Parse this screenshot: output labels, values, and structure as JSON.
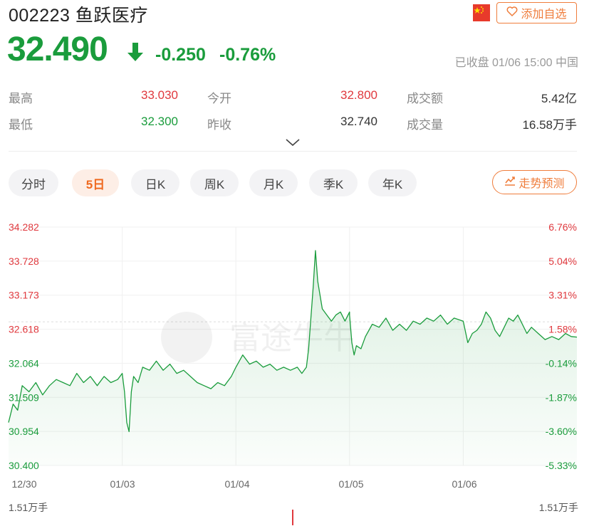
{
  "header": {
    "title": "002223 鱼跃医疗",
    "watchlist_label": "添加自选"
  },
  "quote": {
    "price": "32.490",
    "change": "-0.250",
    "change_pct": "-0.76%",
    "status": "已收盘 01/06 15:00 中国"
  },
  "stats": [
    {
      "label": "最高",
      "value": "33.030",
      "color": "red"
    },
    {
      "label": "今开",
      "value": "32.800",
      "color": "red"
    },
    {
      "label": "成交额",
      "value": "5.42亿",
      "color": "dark"
    },
    {
      "label": "最低",
      "value": "32.300",
      "color": "green"
    },
    {
      "label": "昨收",
      "value": "32.740",
      "color": "dark"
    },
    {
      "label": "成交量",
      "value": "16.58万手",
      "color": "dark"
    }
  ],
  "tabs": [
    {
      "label": "分时",
      "active": false
    },
    {
      "label": "5日",
      "active": true
    },
    {
      "label": "日K",
      "active": false
    },
    {
      "label": "周K",
      "active": false
    },
    {
      "label": "月K",
      "active": false
    },
    {
      "label": "季K",
      "active": false
    },
    {
      "label": "年K",
      "active": false
    }
  ],
  "trend_label": "走势预测",
  "watermark": "富途牛牛",
  "volume": {
    "left_label": "1.51万手",
    "right_label": "1.51万手"
  },
  "colors": {
    "up": "#e0393e",
    "down": "#1a9c3c",
    "accent": "#ef7d3c",
    "line": "#1a9c3c"
  },
  "chart_data": {
    "type": "line",
    "y_ticks": [
      "34.282",
      "33.728",
      "33.173",
      "32.618",
      "32.064",
      "31.509",
      "30.954",
      "30.400"
    ],
    "pct_ticks": [
      "6.76%",
      "5.04%",
      "3.31%",
      "1.58%",
      "-0.14%",
      "-1.87%",
      "-3.60%",
      "-5.33%"
    ],
    "x_ticks": [
      "12/30",
      "01/03",
      "01/04",
      "01/05",
      "01/06"
    ],
    "ylim": [
      30.4,
      34.282
    ],
    "prev_close": 32.74,
    "days": [
      {
        "label": "12/30",
        "points": [
          [
            0.0,
            31.1
          ],
          [
            0.04,
            31.4
          ],
          [
            0.08,
            31.3
          ],
          [
            0.12,
            31.7
          ],
          [
            0.18,
            31.6
          ],
          [
            0.24,
            31.75
          ],
          [
            0.3,
            31.55
          ],
          [
            0.36,
            31.7
          ],
          [
            0.42,
            31.8
          ],
          [
            0.48,
            31.75
          ],
          [
            0.54,
            31.7
          ],
          [
            0.6,
            31.9
          ],
          [
            0.66,
            31.75
          ],
          [
            0.72,
            31.85
          ],
          [
            0.78,
            31.7
          ],
          [
            0.84,
            31.85
          ],
          [
            0.9,
            31.75
          ],
          [
            0.96,
            31.8
          ],
          [
            1.0,
            31.9
          ]
        ]
      },
      {
        "label": "01/03",
        "points": [
          [
            0.0,
            31.9
          ],
          [
            0.02,
            31.6
          ],
          [
            0.04,
            31.1
          ],
          [
            0.06,
            30.95
          ],
          [
            0.08,
            31.6
          ],
          [
            0.1,
            31.85
          ],
          [
            0.14,
            31.75
          ],
          [
            0.18,
            32.0
          ],
          [
            0.24,
            31.95
          ],
          [
            0.3,
            32.1
          ],
          [
            0.36,
            31.95
          ],
          [
            0.42,
            32.05
          ],
          [
            0.48,
            31.9
          ],
          [
            0.54,
            31.95
          ],
          [
            0.6,
            31.85
          ],
          [
            0.66,
            31.75
          ],
          [
            0.72,
            31.7
          ],
          [
            0.78,
            31.65
          ],
          [
            0.84,
            31.75
          ],
          [
            0.9,
            31.7
          ],
          [
            0.96,
            31.85
          ],
          [
            1.0,
            32.0
          ]
        ]
      },
      {
        "label": "01/04",
        "points": [
          [
            0.0,
            32.0
          ],
          [
            0.06,
            32.2
          ],
          [
            0.12,
            32.05
          ],
          [
            0.18,
            32.1
          ],
          [
            0.24,
            32.0
          ],
          [
            0.3,
            32.05
          ],
          [
            0.36,
            31.95
          ],
          [
            0.42,
            32.0
          ],
          [
            0.48,
            31.95
          ],
          [
            0.54,
            32.0
          ],
          [
            0.58,
            31.9
          ],
          [
            0.62,
            32.0
          ],
          [
            0.64,
            32.3
          ],
          [
            0.66,
            32.8
          ],
          [
            0.68,
            33.3
          ],
          [
            0.7,
            33.9
          ],
          [
            0.72,
            33.4
          ],
          [
            0.76,
            32.95
          ],
          [
            0.8,
            32.85
          ],
          [
            0.84,
            32.75
          ],
          [
            0.88,
            32.85
          ],
          [
            0.92,
            32.9
          ],
          [
            0.96,
            32.75
          ],
          [
            1.0,
            32.9
          ]
        ]
      },
      {
        "label": "01/05",
        "points": [
          [
            0.0,
            32.85
          ],
          [
            0.02,
            32.4
          ],
          [
            0.04,
            32.2
          ],
          [
            0.06,
            32.35
          ],
          [
            0.1,
            32.3
          ],
          [
            0.14,
            32.5
          ],
          [
            0.2,
            32.7
          ],
          [
            0.26,
            32.65
          ],
          [
            0.32,
            32.8
          ],
          [
            0.38,
            32.6
          ],
          [
            0.44,
            32.7
          ],
          [
            0.5,
            32.6
          ],
          [
            0.56,
            32.75
          ],
          [
            0.62,
            32.7
          ],
          [
            0.68,
            32.8
          ],
          [
            0.74,
            32.75
          ],
          [
            0.8,
            32.85
          ],
          [
            0.86,
            32.7
          ],
          [
            0.92,
            32.8
          ],
          [
            1.0,
            32.75
          ]
        ]
      },
      {
        "label": "01/06",
        "points": [
          [
            0.0,
            32.75
          ],
          [
            0.04,
            32.4
          ],
          [
            0.08,
            32.55
          ],
          [
            0.12,
            32.6
          ],
          [
            0.16,
            32.7
          ],
          [
            0.2,
            32.9
          ],
          [
            0.24,
            32.8
          ],
          [
            0.28,
            32.6
          ],
          [
            0.32,
            32.5
          ],
          [
            0.36,
            32.65
          ],
          [
            0.4,
            32.8
          ],
          [
            0.44,
            32.75
          ],
          [
            0.48,
            32.85
          ],
          [
            0.52,
            32.7
          ],
          [
            0.56,
            32.55
          ],
          [
            0.6,
            32.65
          ],
          [
            0.66,
            32.55
          ],
          [
            0.72,
            32.45
          ],
          [
            0.78,
            32.5
          ],
          [
            0.84,
            32.45
          ],
          [
            0.9,
            32.55
          ],
          [
            0.95,
            32.5
          ],
          [
            1.0,
            32.49
          ]
        ]
      }
    ]
  }
}
